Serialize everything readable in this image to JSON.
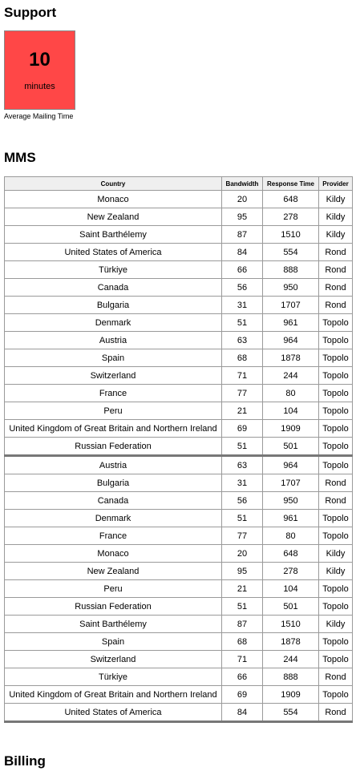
{
  "support": {
    "title": "Support",
    "kpi": {
      "value": "10",
      "unit": "minutes",
      "caption": "Average Mailing Time",
      "color": "#ff4747"
    }
  },
  "mms": {
    "title": "MMS",
    "columns": [
      "Country",
      "Bandwidth",
      "Response Time",
      "Provider"
    ],
    "rows": [
      [
        "Monaco",
        "20",
        "648",
        "Kildy"
      ],
      [
        "New Zealand",
        "95",
        "278",
        "Kildy"
      ],
      [
        "Saint Barthélemy",
        "87",
        "1510",
        "Kildy"
      ],
      [
        "United States of America",
        "84",
        "554",
        "Rond"
      ],
      [
        "Türkiye",
        "66",
        "888",
        "Rond"
      ],
      [
        "Canada",
        "56",
        "950",
        "Rond"
      ],
      [
        "Bulgaria",
        "31",
        "1707",
        "Rond"
      ],
      [
        "Denmark",
        "51",
        "961",
        "Topolo"
      ],
      [
        "Austria",
        "63",
        "964",
        "Topolo"
      ],
      [
        "Spain",
        "68",
        "1878",
        "Topolo"
      ],
      [
        "Switzerland",
        "71",
        "244",
        "Topolo"
      ],
      [
        "France",
        "77",
        "80",
        "Topolo"
      ],
      [
        "Peru",
        "21",
        "104",
        "Topolo"
      ],
      [
        "United Kingdom of Great Britain and Northern Ireland",
        "69",
        "1909",
        "Topolo"
      ],
      [
        "Russian Federation",
        "51",
        "501",
        "Topolo"
      ],
      [
        "Austria",
        "63",
        "964",
        "Topolo"
      ],
      [
        "Bulgaria",
        "31",
        "1707",
        "Rond"
      ],
      [
        "Canada",
        "56",
        "950",
        "Rond"
      ],
      [
        "Denmark",
        "51",
        "961",
        "Topolo"
      ],
      [
        "France",
        "77",
        "80",
        "Topolo"
      ],
      [
        "Monaco",
        "20",
        "648",
        "Kildy"
      ],
      [
        "New Zealand",
        "95",
        "278",
        "Kildy"
      ],
      [
        "Peru",
        "21",
        "104",
        "Topolo"
      ],
      [
        "Russian Federation",
        "51",
        "501",
        "Topolo"
      ],
      [
        "Saint Barthélemy",
        "87",
        "1510",
        "Kildy"
      ],
      [
        "Spain",
        "68",
        "1878",
        "Topolo"
      ],
      [
        "Switzerland",
        "71",
        "244",
        "Topolo"
      ],
      [
        "Türkiye",
        "66",
        "888",
        "Rond"
      ],
      [
        "United Kingdom of Great Britain and Northern Ireland",
        "69",
        "1909",
        "Topolo"
      ],
      [
        "United States of America",
        "84",
        "554",
        "Rond"
      ]
    ]
  },
  "billing": {
    "title": "Billing"
  }
}
